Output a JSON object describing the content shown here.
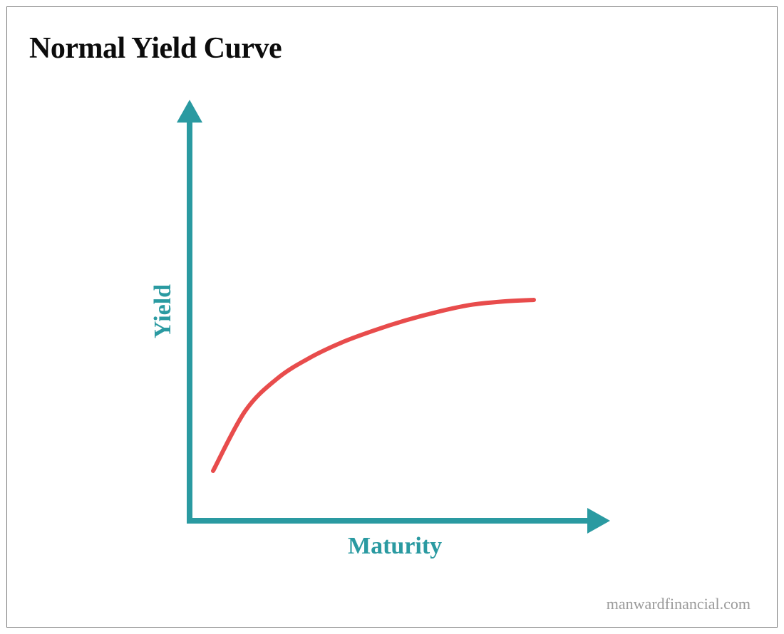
{
  "chart_data": {
    "type": "line",
    "title": "Normal Yield Curve",
    "xlabel": "Maturity",
    "ylabel": "Yield",
    "ticks": "none",
    "grid": false,
    "legend": "none",
    "series": [
      {
        "color": "#e84c4c",
        "shape": "concave-rising",
        "x": [
          0,
          0.1,
          0.2,
          0.3,
          0.4,
          0.5,
          0.6,
          0.7,
          0.8,
          0.9,
          1.0
        ],
        "y": [
          0,
          0.35,
          0.54,
          0.66,
          0.75,
          0.82,
          0.88,
          0.93,
          0.97,
          0.99,
          1.0
        ]
      }
    ]
  },
  "source": "manwardfinancial.com",
  "colors": {
    "axis": "#2a9aa1",
    "curve": "#e84c4c",
    "title": "#0c0c0c",
    "source": "#9a9a9a",
    "border": "#7a7a7a"
  }
}
